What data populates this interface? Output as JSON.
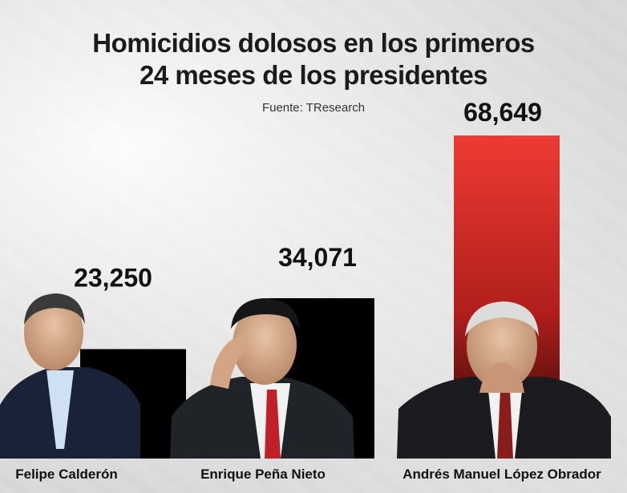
{
  "chart_data": {
    "type": "bar",
    "title_lines": [
      "Homicidios dolosos en los primeros",
      "24 meses de los presidentes"
    ],
    "source": "Fuente: TResearch",
    "categories": [
      "Felipe Calderón",
      "Enrique Peña Nieto",
      "Andrés Manuel López Obrador"
    ],
    "values": [
      23250,
      34071,
      68649
    ],
    "value_labels": [
      "23,250",
      "34,071",
      "68,649"
    ],
    "ylim": [
      0,
      68649
    ],
    "grid": false,
    "bar_colors": [
      "#000000",
      "#000000",
      "#e53935"
    ]
  }
}
